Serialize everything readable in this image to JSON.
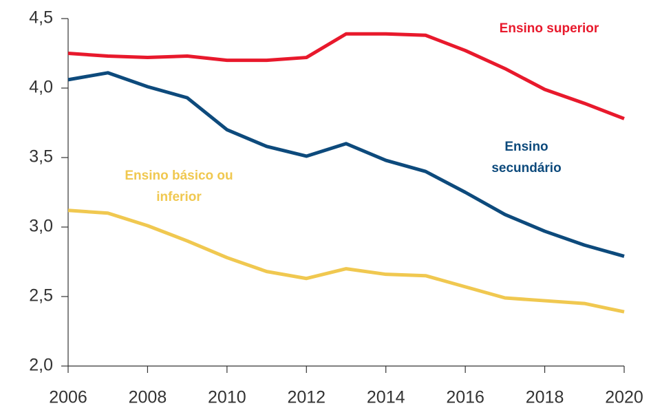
{
  "chart_data": {
    "type": "line",
    "x": [
      2006,
      2007,
      2008,
      2009,
      2010,
      2011,
      2012,
      2013,
      2014,
      2015,
      2016,
      2017,
      2018,
      2019,
      2020
    ],
    "series": [
      {
        "name": "Ensino superior",
        "color": "#e8192c",
        "values": [
          4.25,
          4.23,
          4.22,
          4.23,
          4.2,
          4.2,
          4.22,
          4.39,
          4.39,
          4.38,
          4.27,
          4.14,
          3.99,
          3.89,
          3.78
        ]
      },
      {
        "name": "Ensino secundário",
        "color": "#0d4a7c",
        "values": [
          4.06,
          4.11,
          4.01,
          3.93,
          3.7,
          3.58,
          3.51,
          3.6,
          3.48,
          3.4,
          3.25,
          3.09,
          2.97,
          2.87,
          2.79
        ]
      },
      {
        "name": "Ensino básico ou inferior",
        "color": "#f0c850",
        "values": [
          3.12,
          3.1,
          3.01,
          2.9,
          2.78,
          2.68,
          2.63,
          2.7,
          2.66,
          2.65,
          2.57,
          2.49,
          2.47,
          2.45,
          2.39
        ]
      }
    ],
    "xlim": [
      2006,
      2020
    ],
    "xticks": [
      2006,
      2008,
      2010,
      2012,
      2014,
      2016,
      2018,
      2020
    ],
    "ylim": [
      2.0,
      4.5
    ],
    "yticks": [
      {
        "value": 2.0,
        "label": "2,0"
      },
      {
        "value": 2.5,
        "label": "2,5"
      },
      {
        "value": 3.0,
        "label": "3,0"
      },
      {
        "value": 3.5,
        "label": "3,5"
      },
      {
        "value": 4.0,
        "label": "4,0"
      },
      {
        "value": 4.5,
        "label": "4,5"
      }
    ],
    "grid": false
  }
}
